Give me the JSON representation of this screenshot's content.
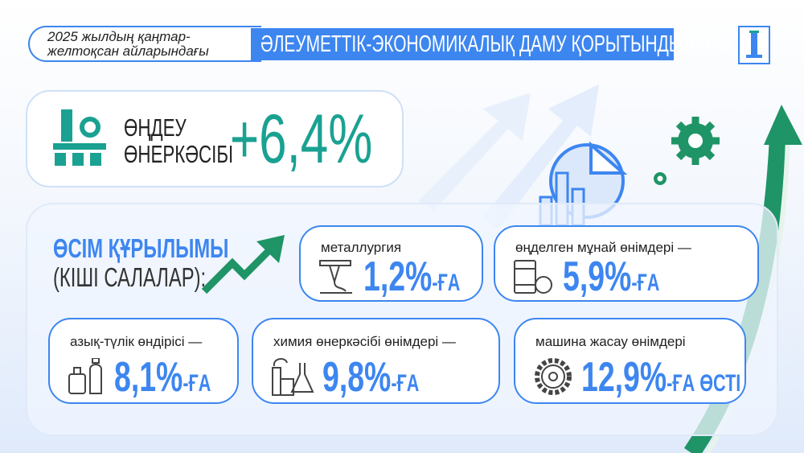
{
  "header": {
    "period_line1": "2025 жылдың қаңтар-",
    "period_line2": "желтоқсан айларындағы",
    "title": "ӘЛЕУМЕТТІК-ЭКОНОМИКАЛЫҚ ДАМУ ҚОРЫТЫНДЫЛАРЫ"
  },
  "summary": {
    "label_line1": "ӨҢДЕУ",
    "label_line2": "ӨНЕРКӘСІБІ",
    "value": "+6,4%",
    "icon": "factory-gear-icon"
  },
  "structure": {
    "title": "ӨСІМ ҚҰРЫЛЫМЫ",
    "subtitle": "(КІШІ САЛАЛАР):"
  },
  "sectors": [
    {
      "label": "металлургия",
      "value": "1,2%",
      "suffix": "-ҒА",
      "icon": "metallurgy-icon"
    },
    {
      "label": "өңделген мұнай өнімдері —",
      "value": "5,9%",
      "suffix": "-ҒА",
      "icon": "oil-barrel-icon"
    },
    {
      "label": "азық-түлік өндірісі —",
      "value": "8,1%",
      "suffix": "-ҒА",
      "icon": "food-icon"
    },
    {
      "label": "химия өнеркәсібі өнімдері —",
      "value": "9,8%",
      "suffix": "-ҒА",
      "icon": "chemistry-icon"
    },
    {
      "label": "машина жасау өнімдері",
      "value": "12,9%",
      "suffix": "-ҒА ӨСТІ",
      "icon": "gear-icon"
    }
  ],
  "colors": {
    "blue": "#3d86f0",
    "teal": "#1aa192",
    "green": "#1f9466"
  }
}
